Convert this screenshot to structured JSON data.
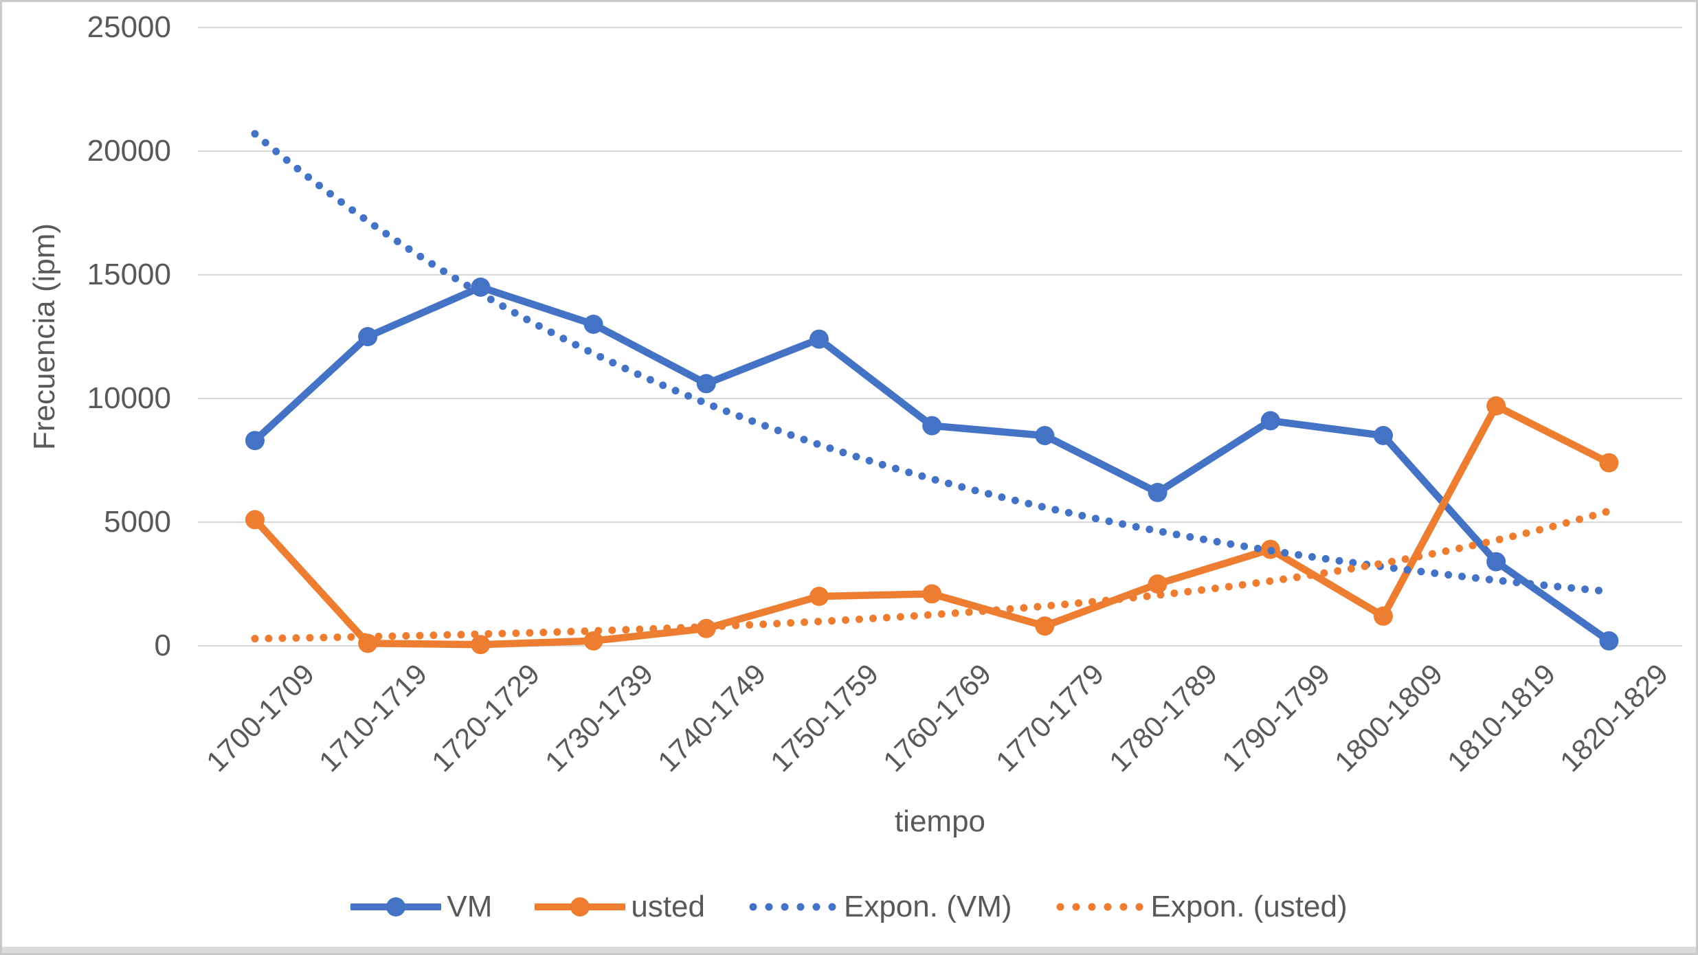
{
  "figure": {
    "background": "#ffffff",
    "frame_border_color": "#c9c9c9",
    "bottom_strip_color": "#dcdcdc"
  },
  "chart_data": {
    "type": "line",
    "title": "",
    "xlabel": "tiempo",
    "ylabel": "Frecuencia (ipm)",
    "categories": [
      "1700-1709",
      "1710-1719",
      "1720-1729",
      "1730-1739",
      "1740-1749",
      "1750-1759",
      "1760-1769",
      "1770-1779",
      "1780-1789",
      "1790-1799",
      "1800-1809",
      "1810-1819",
      "1820-1829"
    ],
    "y_ticks": [
      "25000",
      "20000",
      "15000",
      "10000",
      "5000",
      "0"
    ],
    "y_tick_values": [
      25000,
      20000,
      15000,
      10000,
      5000,
      0
    ],
    "ylim": [
      0,
      25000
    ],
    "grid": true,
    "gridline_color": "#d9d9d9",
    "text_color": "#595959",
    "legend_position": "bottom",
    "series": [
      {
        "name": "VM",
        "color": "#4472c4",
        "style": "solid",
        "values": [
          8300,
          12500,
          14500,
          13000,
          10600,
          12400,
          8900,
          8500,
          6200,
          9100,
          8500,
          3400,
          200
        ]
      },
      {
        "name": "usted",
        "color": "#ed7d31",
        "style": "solid",
        "values": [
          5100,
          100,
          50,
          200,
          700,
          2000,
          2100,
          800,
          2500,
          3900,
          1200,
          9700,
          7400
        ]
      },
      {
        "name": "Expon. (VM)",
        "color": "#4472c4",
        "style": "dotted",
        "trend": "exponential",
        "values": [
          20700,
          17170,
          14250,
          11820,
          9810,
          8140,
          6750,
          5600,
          4650,
          3860,
          3200,
          2650,
          2200
        ]
      },
      {
        "name": "Expon. (usted)",
        "color": "#ed7d31",
        "style": "dotted",
        "trend": "exponential",
        "values": [
          290,
          370,
          470,
          600,
          770,
          980,
          1260,
          1610,
          2050,
          2620,
          3340,
          4270,
          5450
        ]
      }
    ],
    "legend": [
      {
        "label": "VM"
      },
      {
        "label": "usted"
      },
      {
        "label": "Expon. (VM)"
      },
      {
        "label": "Expon. (usted)"
      }
    ]
  }
}
